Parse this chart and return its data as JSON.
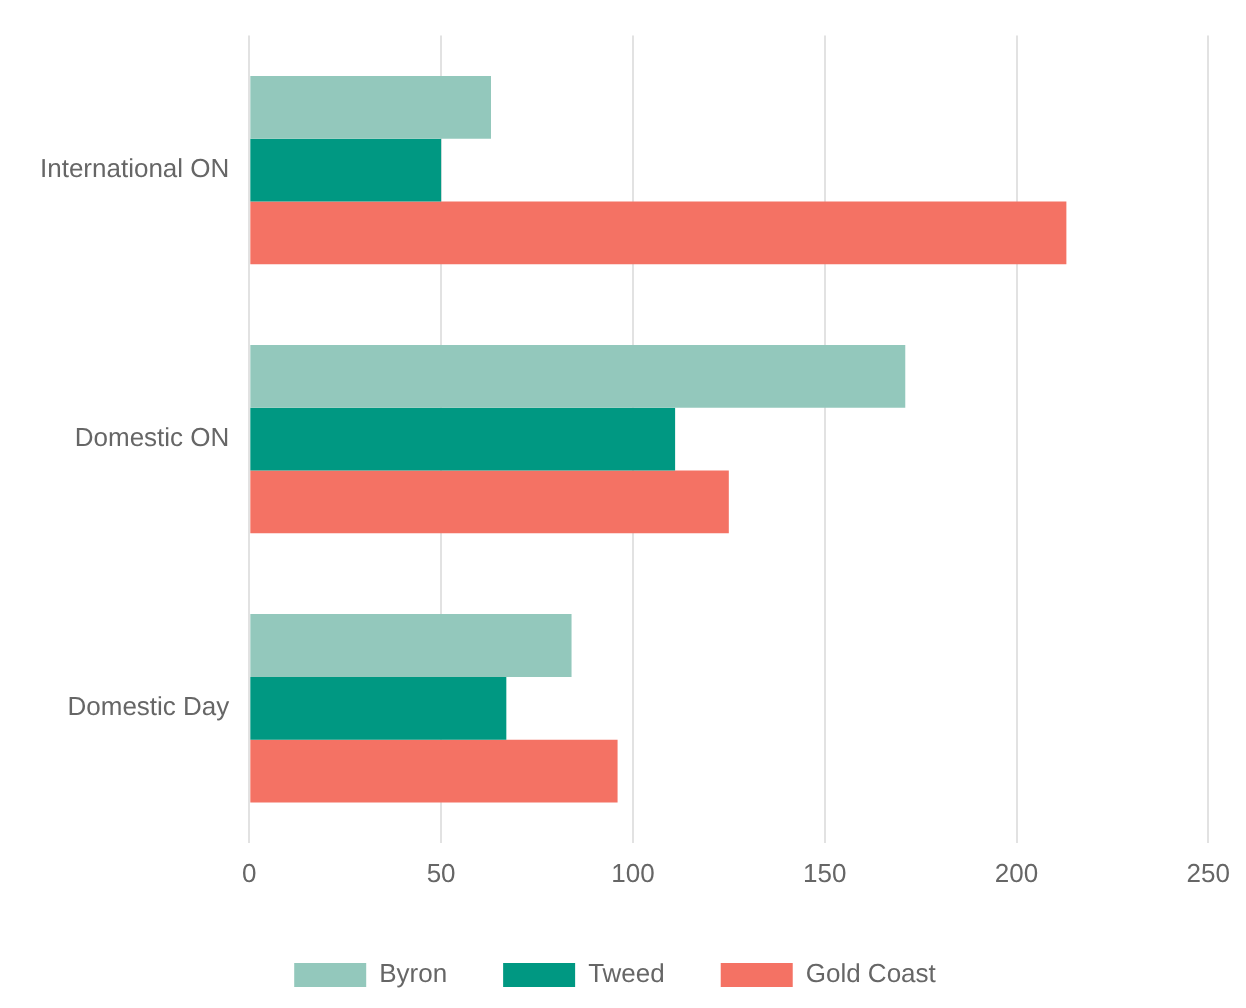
{
  "chart_data": {
    "type": "bar",
    "orientation": "horizontal",
    "categories": [
      "International ON",
      "Domestic ON",
      "Domestic Day"
    ],
    "series": [
      {
        "name": "Byron",
        "color": "#93c8bc",
        "values": [
          63,
          171,
          84
        ]
      },
      {
        "name": "Tweed",
        "color": "#009882",
        "values": [
          50,
          111,
          67
        ]
      },
      {
        "name": "Gold Coast",
        "color": "#f47264",
        "values": [
          213,
          125,
          96
        ]
      }
    ],
    "xlim": [
      0,
      250
    ],
    "xticks": [
      0,
      50,
      100,
      150,
      200,
      250
    ],
    "grid": "x",
    "legend": "bottom"
  }
}
